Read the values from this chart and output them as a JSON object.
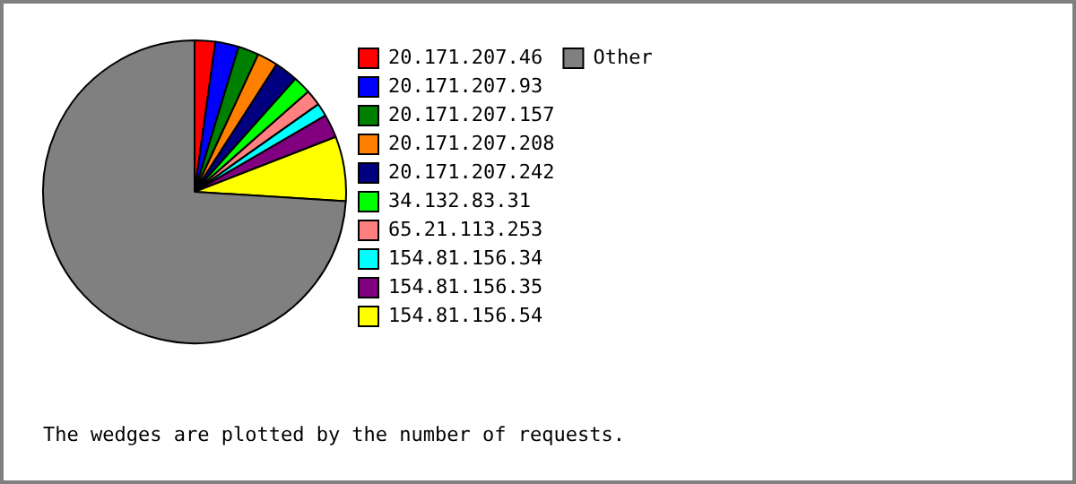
{
  "chart_data": {
    "type": "pie",
    "categories": [
      "20.171.207.46",
      "20.171.207.93",
      "20.171.207.157",
      "20.171.207.208",
      "20.171.207.242",
      "34.132.83.31",
      "65.21.113.253",
      "154.81.156.34",
      "154.81.156.35",
      "154.81.156.54",
      "Other"
    ],
    "values": [
      2.2,
      2.5,
      2.2,
      2.2,
      2.5,
      1.9,
      1.7,
      1.4,
      2.5,
      6.9,
      74.0
    ],
    "colors": [
      "#ff0000",
      "#0000ff",
      "#008000",
      "#ff8000",
      "#000080",
      "#00ff00",
      "#ff8080",
      "#00ffff",
      "#800080",
      "#ffff00",
      "#808080"
    ],
    "legend": "right",
    "annotations": [
      "The wedges are plotted by the number of requests."
    ]
  }
}
